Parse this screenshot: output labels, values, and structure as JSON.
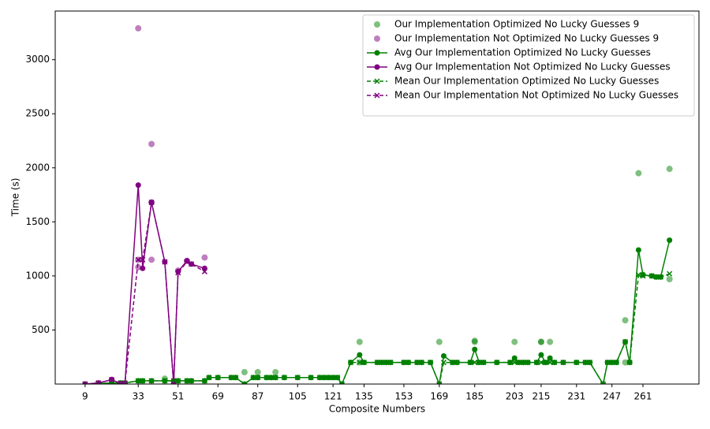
{
  "chart_data": {
    "type": "line",
    "x_label": "Composite Numbers",
    "y_label": "Time (s)",
    "xlim": [
      -4.5,
      286.3
    ],
    "ylim": [
      0,
      3450
    ],
    "xticks": [
      9,
      33,
      51,
      69,
      87,
      105,
      121,
      135,
      153,
      169,
      185,
      203,
      215,
      231,
      247,
      261
    ],
    "yticks": [
      500,
      1000,
      1500,
      2000,
      2500,
      3000
    ],
    "legend": "upper right",
    "series": [
      {
        "name": "Our Implementation Optimized No Lucky Guesses 9",
        "kind": "scatter",
        "color": "#008000",
        "x": [
          45,
          81,
          87,
          95,
          133,
          133,
          169,
          185,
          185,
          203,
          215,
          215,
          219,
          253,
          253,
          259,
          261,
          273,
          273
        ],
        "values": [
          50,
          110,
          110,
          110,
          390,
          200,
          390,
          390,
          400,
          390,
          390,
          390,
          390,
          590,
          200,
          1950,
          1010,
          1990,
          970
        ]
      },
      {
        "name": "Our Implementation Not Optimized No Lucky Guesses 9",
        "kind": "scatter",
        "color": "#800080",
        "x": [
          33,
          33,
          33,
          39,
          39,
          39,
          63,
          51,
          55,
          21
        ],
        "values": [
          3290,
          1150,
          1080,
          2220,
          1150,
          1680,
          1170,
          1050,
          1140,
          40
        ]
      },
      {
        "name": "Avg Our Implementation Optimized No Lucky Guesses",
        "kind": "line",
        "color": "#008000",
        "x": [
          9,
          15,
          21,
          25,
          27,
          33,
          35,
          39,
          45,
          49,
          51,
          55,
          57,
          63,
          65,
          69,
          75,
          77,
          81,
          85,
          87,
          91,
          93,
          95,
          99,
          105,
          111,
          115,
          117,
          119,
          121,
          123,
          125,
          129,
          133,
          135,
          141,
          143,
          145,
          147,
          153,
          155,
          159,
          161,
          165,
          169,
          171,
          175,
          177,
          183,
          185,
          187,
          189,
          195,
          201,
          203,
          205,
          207,
          209,
          213,
          215,
          217,
          219,
          221,
          225,
          231,
          235,
          237,
          243,
          245,
          247,
          249,
          253,
          255,
          259,
          261,
          265,
          267,
          269,
          273
        ],
        "values": [
          0,
          5,
          10,
          10,
          10,
          30,
          30,
          30,
          30,
          30,
          30,
          30,
          30,
          30,
          60,
          60,
          60,
          60,
          0,
          60,
          60,
          60,
          60,
          60,
          60,
          60,
          60,
          60,
          60,
          60,
          60,
          60,
          0,
          200,
          270,
          200,
          200,
          200,
          200,
          200,
          200,
          200,
          200,
          200,
          200,
          0,
          260,
          200,
          200,
          200,
          320,
          200,
          200,
          200,
          200,
          240,
          200,
          200,
          200,
          200,
          270,
          200,
          240,
          200,
          200,
          200,
          200,
          200,
          0,
          200,
          200,
          200,
          390,
          200,
          1240,
          1010,
          1000,
          990,
          990,
          1330
        ]
      },
      {
        "name": "Avg Our Implementation Not Optimized No Lucky Guesses",
        "kind": "line",
        "color": "#800080",
        "x": [
          9,
          15,
          21,
          25,
          27,
          33,
          35,
          39,
          45,
          49,
          51,
          55,
          57,
          63
        ],
        "values": [
          0,
          10,
          40,
          5,
          5,
          1840,
          1070,
          1680,
          1130,
          0,
          1040,
          1140,
          1110,
          1070
        ]
      },
      {
        "name": "Mean Our Implementation Optimized No Lucky Guesses",
        "kind": "dashed",
        "color": "#008000",
        "x": [
          9,
          15,
          21,
          25,
          27,
          33,
          35,
          39,
          45,
          49,
          51,
          55,
          57,
          63,
          65,
          69,
          75,
          77,
          81,
          85,
          87,
          91,
          93,
          95,
          99,
          105,
          111,
          115,
          117,
          119,
          121,
          123,
          125,
          129,
          133,
          135,
          141,
          143,
          145,
          147,
          153,
          155,
          159,
          161,
          165,
          169,
          171,
          175,
          177,
          183,
          185,
          187,
          189,
          195,
          201,
          203,
          205,
          207,
          209,
          213,
          215,
          217,
          219,
          221,
          225,
          231,
          235,
          237,
          243,
          245,
          247,
          249,
          253,
          255,
          259,
          261,
          265,
          267,
          269,
          273
        ],
        "values": [
          0,
          5,
          10,
          10,
          10,
          30,
          30,
          30,
          30,
          30,
          30,
          30,
          30,
          30,
          60,
          60,
          60,
          60,
          0,
          60,
          60,
          60,
          60,
          60,
          60,
          60,
          60,
          60,
          60,
          60,
          60,
          60,
          0,
          200,
          200,
          200,
          200,
          200,
          200,
          200,
          200,
          200,
          200,
          200,
          200,
          0,
          200,
          200,
          200,
          200,
          200,
          200,
          200,
          200,
          200,
          200,
          200,
          200,
          200,
          200,
          200,
          200,
          200,
          200,
          200,
          200,
          200,
          200,
          0,
          200,
          200,
          200,
          390,
          200,
          1010,
          1000,
          1000,
          990,
          990,
          1020
        ]
      },
      {
        "name": "Mean Our Implementation Not Optimized No Lucky Guesses",
        "kind": "dashed",
        "color": "#800080",
        "x": [
          9,
          15,
          21,
          25,
          27,
          33,
          35,
          39,
          45,
          49,
          51,
          55,
          57,
          63
        ],
        "values": [
          0,
          10,
          40,
          5,
          5,
          1150,
          1150,
          1680,
          1130,
          0,
          1030,
          1130,
          1110,
          1040
        ]
      }
    ]
  }
}
